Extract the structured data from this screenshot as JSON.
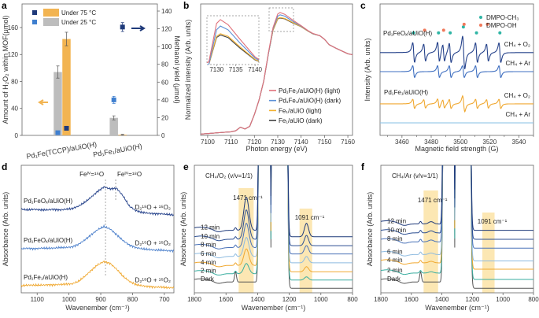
{
  "panel_letters": [
    "a",
    "b",
    "c",
    "d",
    "e",
    "f"
  ],
  "chart_data": [
    {
      "panel": "a",
      "type": "bar",
      "categories": [
        "Pd₁Fe(TCCP)/aUiO(H)",
        "Pd₁Fe₁/aUiO(H)"
      ],
      "ylabel": "Amount of H₂O₂ within MOF(μmol)",
      "y2label": "Methanol yield (μmol)",
      "ylim": [
        0,
        195
      ],
      "y2lim": [
        0,
        148
      ],
      "yticks": [
        0,
        40,
        80,
        120,
        160
      ],
      "y2ticks": [
        0,
        20,
        40,
        60,
        80,
        100,
        120,
        140
      ],
      "grid": false,
      "legend": {
        "placement": "top-left",
        "entries": [
          "Under 75 °C",
          "Under 25 °C"
        ]
      },
      "bar_series": [
        {
          "name": "Under 25 °C",
          "axis": "left",
          "values": [
            94,
            26
          ],
          "errors": [
            9,
            3
          ],
          "color": "#bdbdbd"
        },
        {
          "name": "Under 75 °C",
          "axis": "left",
          "values": [
            143,
            1
          ],
          "errors": [
            10,
            0.5
          ],
          "color": "#f2b452"
        }
      ],
      "point_series": [
        {
          "name": "Under 25 °C",
          "axis": "right",
          "values": [
            3,
            40
          ],
          "errors": [
            0,
            4
          ],
          "color": "#3f7fcf"
        },
        {
          "name": "Under 75 °C",
          "axis": "right",
          "values": [
            8,
            122
          ],
          "errors": [
            0,
            5
          ],
          "color": "#1f3a7a"
        }
      ],
      "arrows": [
        {
          "axis": "left",
          "color": "#f2b452"
        },
        {
          "axis": "right",
          "color": "#1f3a7a"
        }
      ]
    },
    {
      "panel": "b",
      "type": "line",
      "xlabel": "Photon energy (eV)",
      "ylabel": "Normalized intensity (Arb. units)",
      "xlim": [
        7097,
        7162
      ],
      "ylim": [
        0,
        1.45
      ],
      "xticks": [
        7100,
        7110,
        7120,
        7130,
        7140,
        7150,
        7160
      ],
      "legend": {
        "placement": "bottom-right"
      },
      "x": [
        7097,
        7100,
        7105,
        7110,
        7112,
        7114,
        7116,
        7118,
        7120,
        7122,
        7124,
        7126,
        7128,
        7130,
        7131,
        7133,
        7136,
        7140,
        7143,
        7145,
        7148,
        7150,
        7152,
        7155,
        7160,
        7162
      ],
      "series": [
        {
          "name": "Pd₁Fe₁/aUiO(H) (light)",
          "color": "#e0707a",
          "values": [
            0.015,
            0.02,
            0.03,
            0.04,
            0.05,
            0.09,
            0.07,
            0.1,
            0.23,
            0.39,
            0.6,
            0.91,
            1.19,
            1.34,
            1.355,
            1.335,
            1.28,
            1.21,
            1.155,
            1.125,
            1.1,
            1.06,
            1.0,
            0.96,
            0.9,
            0.89
          ]
        },
        {
          "name": "Pd₁Fe₁/aUiO(H) (dark)",
          "color": "#5b8fd6",
          "values": [
            0.015,
            0.02,
            0.03,
            0.04,
            0.05,
            0.09,
            0.07,
            0.1,
            0.23,
            0.39,
            0.6,
            0.9,
            1.175,
            1.315,
            1.33,
            1.315,
            1.265,
            1.205,
            1.152,
            1.122,
            1.1,
            1.06,
            1.0,
            0.96,
            0.9,
            0.89
          ]
        },
        {
          "name": "Fe₁/aUiO (light)",
          "color": "#f2b030",
          "values": [
            0.015,
            0.02,
            0.03,
            0.04,
            0.05,
            0.09,
            0.07,
            0.1,
            0.23,
            0.39,
            0.6,
            0.9,
            1.16,
            1.29,
            1.3,
            1.29,
            1.25,
            1.2,
            1.15,
            1.12,
            1.1,
            1.06,
            1.0,
            0.96,
            0.9,
            0.89
          ]
        },
        {
          "name": "Fe₁/aUiO (dark)",
          "color": "#444444",
          "values": [
            0.015,
            0.02,
            0.03,
            0.04,
            0.05,
            0.09,
            0.07,
            0.1,
            0.23,
            0.39,
            0.6,
            0.9,
            1.16,
            1.285,
            1.295,
            1.285,
            1.245,
            1.198,
            1.15,
            1.12,
            1.1,
            1.06,
            1.0,
            0.96,
            0.9,
            0.89
          ]
        }
      ],
      "inset": {
        "xlim": [
          7127.5,
          7141
        ],
        "ylim": [
          1.18,
          1.37
        ],
        "xticks": [
          7130,
          7135,
          7140
        ]
      }
    },
    {
      "panel": "c",
      "type": "line",
      "xlabel": "Magnetic field strength (G)",
      "ylabel": "Intensity (Arb. units)",
      "xlim": [
        3445,
        3550
      ],
      "ylim": [
        0,
        10
      ],
      "xticks": [
        3460,
        3480,
        3500,
        3520,
        3540
      ],
      "legend": {
        "placement": "top-right",
        "entries": [
          {
            "name": "DMPO-CH₃",
            "color": "#2fb5a5"
          },
          {
            "name": "DMPO-OH",
            "color": "#f0785a"
          }
        ]
      },
      "dmpo_ch3_lines": [
        3468,
        3485,
        3493,
        3502,
        3511,
        3527
      ],
      "dmpo_oh_lines": [
        3475.5,
        3488.5,
        3502.5,
        3518.5
      ],
      "sample_labels": [
        "Pd₁FeOₓ/aUiO(H)",
        "Pd₁Fe₁/aUiO(H)"
      ],
      "series": [
        {
          "name": "CH₄ + O₂",
          "sample": 0,
          "color": "#24418a",
          "offset": 6.3,
          "ch3_amp": 0.75,
          "oh_amp": 0.65
        },
        {
          "name": "CH₄ + Ar",
          "sample": 0,
          "color": "#3f6fc0",
          "offset": 4.85,
          "ch3_amp": 0.45,
          "oh_amp": 0.0
        },
        {
          "name": "CH₄ + O₂",
          "sample": 1,
          "color": "#f0a830",
          "offset": 2.4,
          "ch3_amp": 0.35,
          "oh_amp": 0.32
        },
        {
          "name": "CH₄ + Ar",
          "sample": 1,
          "color": "#8ec3e6",
          "offset": 0.95,
          "ch3_amp": 0.0,
          "oh_amp": 0.0
        }
      ]
    },
    {
      "panel": "d",
      "type": "line",
      "xlabel": "Wavenember (cm⁻¹)",
      "ylabel": "Absorbance (Arb. units)",
      "xlim": [
        1150,
        670
      ],
      "ylim": [
        0,
        10
      ],
      "xticks": [
        1100,
        1000,
        900,
        800,
        700
      ],
      "annotations": [
        {
          "text": "Feᴵⱽ=¹⁶O",
          "x": 885
        },
        {
          "text": "Feᴵⱽ=¹⁸O",
          "x": 853
        }
      ],
      "x": [
        1150,
        1130,
        1110,
        1090,
        1070,
        1050,
        1030,
        1010,
        990,
        970,
        950,
        930,
        910,
        890,
        870,
        850,
        830,
        810,
        790,
        770,
        750,
        730,
        710,
        690,
        670
      ],
      "series": [
        {
          "sample": "Pd₁FeOₓ/aUiO(H)",
          "condition": "D₂¹⁸O + ¹⁶O₂",
          "color": "#24418a",
          "values": [
            6.55,
            6.5,
            6.55,
            6.5,
            6.5,
            6.55,
            6.5,
            6.55,
            6.6,
            6.8,
            7.1,
            7.5,
            7.95,
            8.3,
            8.15,
            8.2,
            7.6,
            6.8,
            6.45,
            6.3,
            6.25,
            6.2,
            6.2,
            6.15,
            6.1
          ]
        },
        {
          "sample": "Pd₁FeOₓ/aUiO(H)",
          "condition": "D₂¹⁶O + ¹⁶O₂",
          "color": "#4f82cc",
          "values": [
            3.45,
            3.5,
            3.45,
            3.5,
            3.5,
            3.5,
            3.55,
            3.55,
            3.6,
            3.8,
            4.15,
            4.55,
            4.95,
            5.2,
            5.0,
            4.55,
            4.1,
            3.75,
            3.55,
            3.45,
            3.4,
            3.35,
            3.35,
            3.3,
            3.3
          ]
        },
        {
          "sample": "Pd₁Fe₁/aUiO(H)",
          "condition": "D₂¹⁸O + ¹⁶O₂",
          "color": "#f0a830",
          "values": [
            0.55,
            0.6,
            0.6,
            0.6,
            0.62,
            0.62,
            0.65,
            0.68,
            0.7,
            0.9,
            1.3,
            1.75,
            2.2,
            2.45,
            2.3,
            1.85,
            1.3,
            0.9,
            0.65,
            0.55,
            0.5,
            0.45,
            0.45,
            0.4,
            0.4
          ]
        }
      ]
    },
    {
      "panel": "e",
      "type": "line",
      "title": "CH₄/O₂ (v/v=1/1)",
      "xlabel": "Wavenember (cm⁻¹)",
      "ylabel": "Absorbance (Arb. units)",
      "xlim": [
        1800,
        800
      ],
      "ylim": [
        0,
        10
      ],
      "xticks": [
        1800,
        1600,
        1400,
        1200,
        1000,
        800
      ],
      "highlights": [
        {
          "label": "1471 cm⁻¹",
          "from": 1520,
          "to": 1425,
          "color": "#fbe3a6"
        },
        {
          "label": "1091 cm⁻¹",
          "from": 1135,
          "to": 1055,
          "color": "#fbe3a6"
        }
      ],
      "series": [
        {
          "label": "12 min",
          "color": "#1f3a7a",
          "offset": 4.4,
          "peak_1471": 2.6,
          "peak_1091": 1.05
        },
        {
          "label": "10 min",
          "color": "#2c4f92",
          "offset": 3.7,
          "peak_1471": 2.3,
          "peak_1091": 0.8
        },
        {
          "label": "8 min",
          "color": "#4a72b8",
          "offset": 3.05,
          "peak_1471": 1.9,
          "peak_1091": 0.65
        },
        {
          "label": "6 min",
          "color": "#8ebbe0",
          "offset": 2.35,
          "peak_1471": 1.5,
          "peak_1091": 0.5
        },
        {
          "label": "4 min",
          "color": "#f0a830",
          "offset": 1.65,
          "peak_1471": 1.3,
          "peak_1091": 0.4
        },
        {
          "label": "2 min",
          "color": "#3aaea0",
          "offset": 1.0,
          "peak_1471": 0.8,
          "peak_1091": 0.25
        },
        {
          "label": "Dark",
          "color": "#555555",
          "offset": 0.35,
          "peak_1471": 0.0,
          "peak_1091": 0.0
        }
      ]
    },
    {
      "panel": "f",
      "type": "line",
      "title": "CH₄/Ar (v/v=1/1)",
      "xlabel": "Wavenember (cm⁻¹)",
      "ylabel": "Absorbance (Arb. units)",
      "xlim": [
        1800,
        800
      ],
      "ylim": [
        0,
        10
      ],
      "xticks": [
        1800,
        1600,
        1400,
        1200,
        1000,
        800
      ],
      "highlights": [
        {
          "label": "1471 cm⁻¹",
          "from": 1520,
          "to": 1425,
          "color": "#fbe3a6"
        },
        {
          "label": "1091 cm⁻¹",
          "from": 1135,
          "to": 1055,
          "color": "#fbe3a6"
        }
      ],
      "series": [
        {
          "label": "12 min",
          "color": "#1f3a7a",
          "offset": 4.9,
          "peak_1471": 0.18,
          "peak_1091": 0.0
        },
        {
          "label": "10 min",
          "color": "#2c4f92",
          "offset": 4.2,
          "peak_1471": 0.16,
          "peak_1091": 0.0
        },
        {
          "label": "8 min",
          "color": "#4a72b8",
          "offset": 3.5,
          "peak_1471": 0.14,
          "peak_1091": 0.0
        },
        {
          "label": "6 min",
          "color": "#8ebbe0",
          "offset": 2.5,
          "peak_1471": 0.12,
          "peak_1091": 0.0
        },
        {
          "label": "4 min",
          "color": "#f0a830",
          "offset": 1.85,
          "peak_1471": 0.12,
          "peak_1091": 0.0
        },
        {
          "label": "2 min",
          "color": "#3aaea0",
          "offset": 1.05,
          "peak_1471": 0.1,
          "peak_1091": 0.0
        },
        {
          "label": "Dark",
          "color": "#555555",
          "offset": 0.35,
          "peak_1471": 0.0,
          "peak_1091": 0.0
        }
      ]
    }
  ]
}
